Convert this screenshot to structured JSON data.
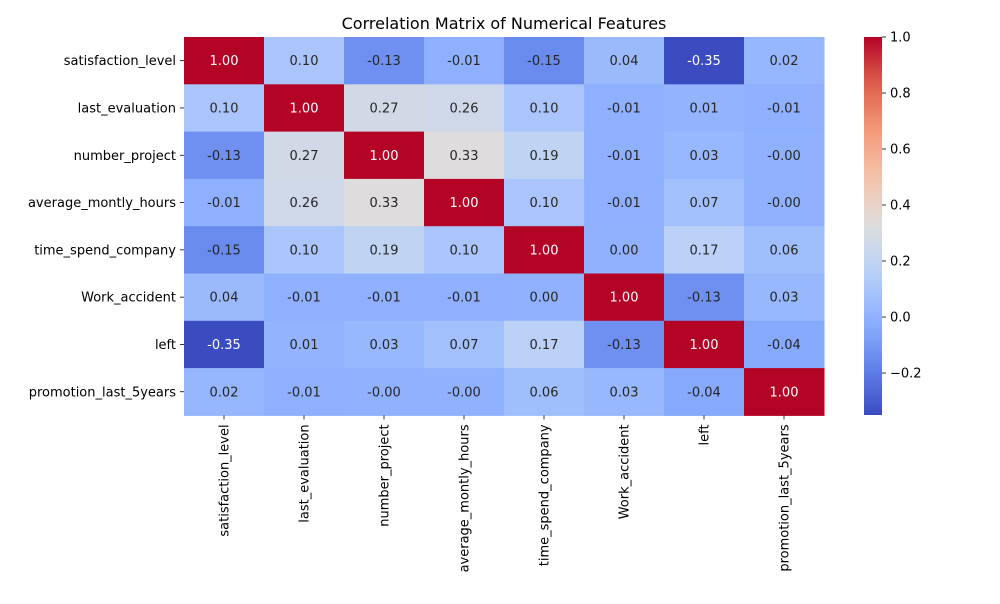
{
  "chart_data": {
    "type": "heatmap",
    "title": "Correlation Matrix of Numerical Features",
    "xlabel": "",
    "ylabel": "",
    "colormap": "coolwarm",
    "categories": [
      "satisfaction_level",
      "last_evaluation",
      "number_project",
      "average_montly_hours",
      "time_spend_company",
      "Work_accident",
      "left",
      "promotion_last_5years"
    ],
    "values": [
      [
        1.0,
        0.1,
        -0.13,
        -0.01,
        -0.15,
        0.04,
        -0.35,
        0.02
      ],
      [
        0.1,
        1.0,
        0.27,
        0.26,
        0.1,
        -0.01,
        0.01,
        -0.01
      ],
      [
        -0.13,
        0.27,
        1.0,
        0.33,
        0.19,
        -0.01,
        0.03,
        -0.0
      ],
      [
        -0.01,
        0.26,
        0.33,
        1.0,
        0.1,
        -0.01,
        0.07,
        -0.0
      ],
      [
        -0.15,
        0.1,
        0.19,
        0.1,
        1.0,
        0.0,
        0.17,
        0.06
      ],
      [
        0.04,
        -0.01,
        -0.01,
        -0.01,
        0.0,
        1.0,
        -0.13,
        0.03
      ],
      [
        -0.35,
        0.01,
        0.03,
        0.07,
        0.17,
        -0.13,
        1.0,
        -0.04
      ],
      [
        0.02,
        -0.01,
        -0.0,
        -0.0,
        0.06,
        0.03,
        -0.04,
        1.0
      ]
    ],
    "annotation_format": "0.00",
    "colorbar": {
      "range": [
        -0.35,
        1.0
      ],
      "ticks": [
        -0.2,
        0.0,
        0.2,
        0.4,
        0.6,
        0.8,
        1.0
      ],
      "tick_labels": [
        "−0.2",
        "0.0",
        "0.2",
        "0.4",
        "0.6",
        "0.8",
        "1.0"
      ]
    }
  }
}
